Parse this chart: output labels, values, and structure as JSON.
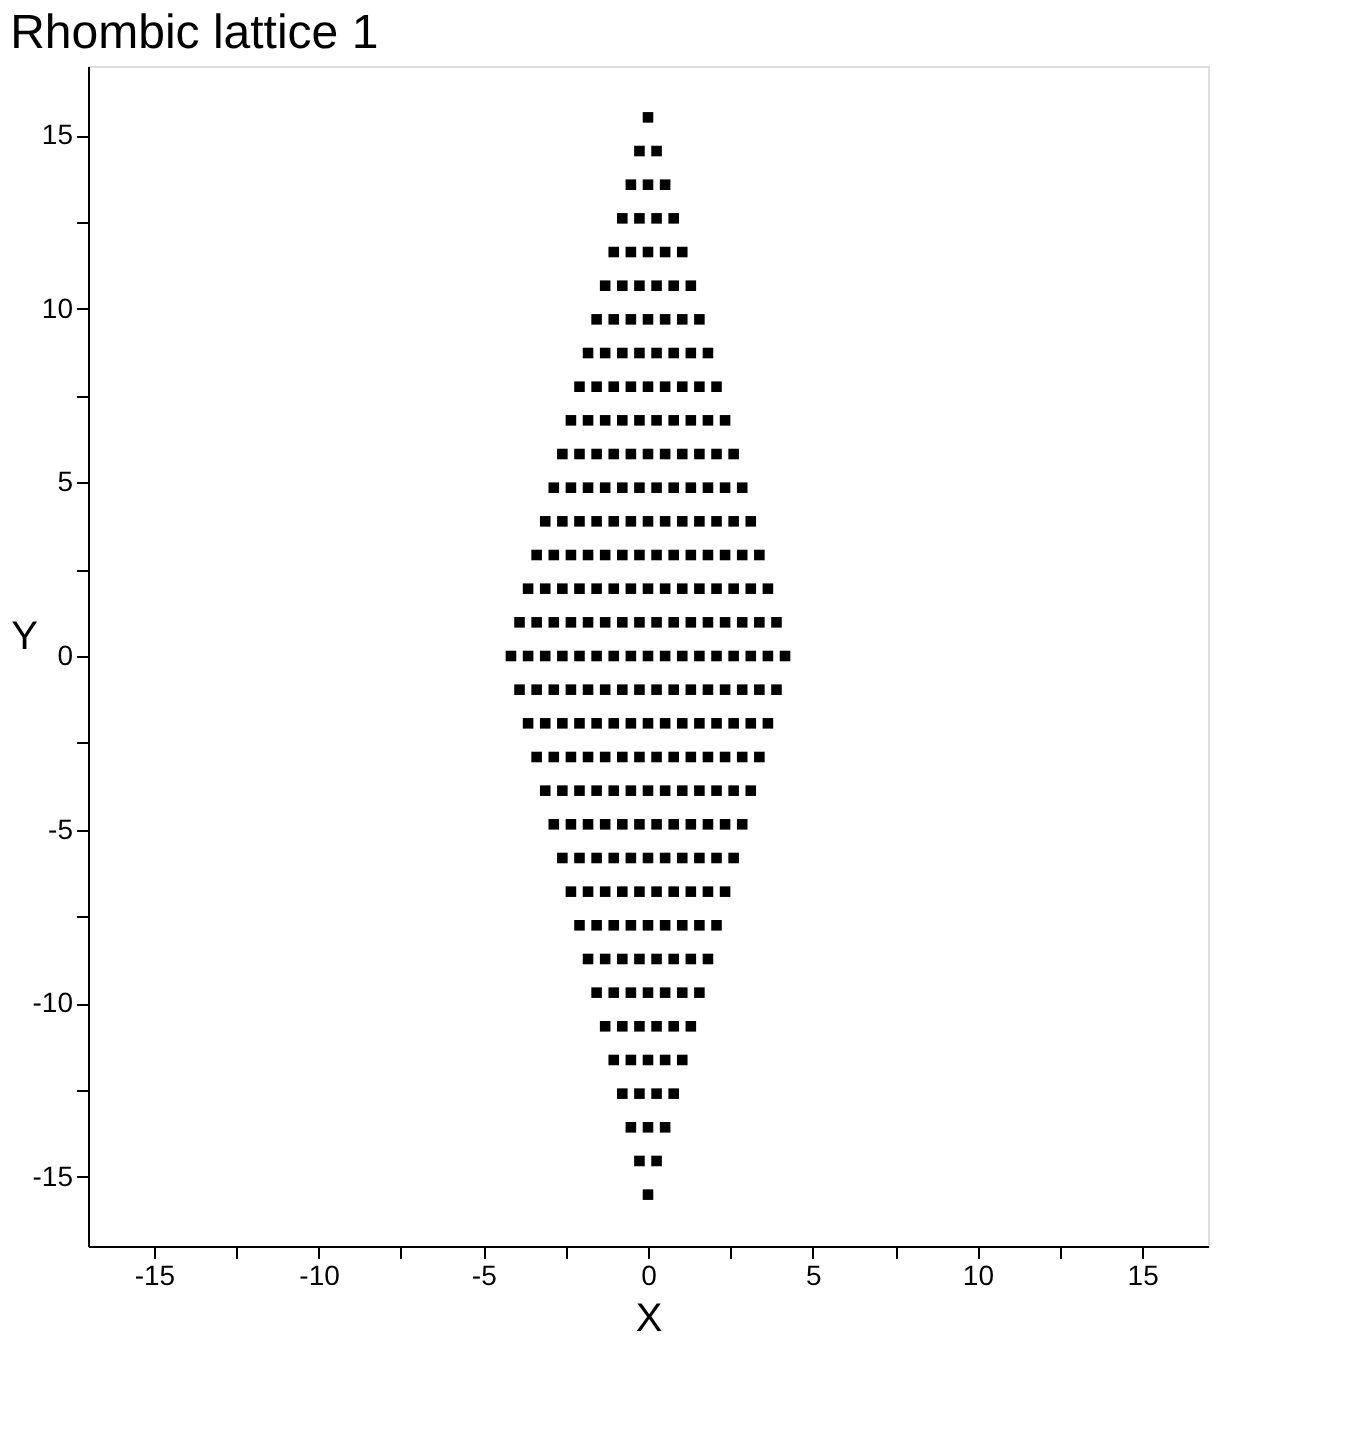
{
  "chart_data": {
    "type": "scatter",
    "title": "Rhombic lattice 1",
    "xlabel": "X",
    "ylabel": "Y",
    "xlim": [
      -17,
      17
    ],
    "ylim": [
      -17,
      17
    ],
    "xticks": [
      -15,
      {
        "value": -12.5,
        "label": null
      },
      -10,
      {
        "value": -7.5,
        "label": null
      },
      -5,
      {
        "value": -2.5,
        "label": null
      },
      0,
      {
        "value": 2.5,
        "label": null
      },
      5,
      {
        "value": 7.5,
        "label": null
      },
      10,
      {
        "value": 12.5,
        "label": null
      },
      15
    ],
    "yticks": [
      -15,
      {
        "value": -12.5,
        "label": null
      },
      -10,
      {
        "value": -7.5,
        "label": null
      },
      -5,
      {
        "value": -2.5,
        "label": null
      },
      0,
      {
        "value": 2.5,
        "label": null
      },
      5,
      {
        "value": 7.5,
        "label": null
      },
      10,
      {
        "value": 12.5,
        "label": null
      },
      15
    ],
    "grid": false,
    "legend": false,
    "marker": "square",
    "series": [
      {
        "color": "#000000",
        "x": [
          0
        ],
        "values": [
          15.52
        ]
      },
      {
        "color": "#000000",
        "x": [
          -0.26,
          0.26
        ],
        "values": [
          14.55,
          14.55
        ]
      },
      {
        "color": "#000000",
        "x": [
          -0.52,
          0,
          0.52
        ],
        "values": [
          13.58,
          13.58,
          13.58
        ]
      },
      {
        "color": "#000000",
        "x": [
          -0.78,
          -0.26,
          0.26,
          0.78
        ],
        "values": [
          12.61,
          12.61,
          12.61,
          12.61
        ]
      },
      {
        "color": "#000000",
        "x": [
          -1.04,
          -0.52,
          0,
          0.52,
          1.04
        ],
        "values": [
          11.64,
          11.64,
          11.64,
          11.64,
          11.64
        ]
      },
      {
        "color": "#000000",
        "x": [
          -1.3,
          -0.78,
          -0.26,
          0.26,
          0.78,
          1.3
        ],
        "values": [
          10.67,
          10.67,
          10.67,
          10.67,
          10.67,
          10.67
        ]
      },
      {
        "color": "#000000",
        "x": [
          -1.56,
          -1.04,
          -0.52,
          0,
          0.52,
          1.04,
          1.56
        ],
        "values": [
          9.7,
          9.7,
          9.7,
          9.7,
          9.7,
          9.7,
          9.7
        ]
      },
      {
        "color": "#000000",
        "x": [
          -1.82,
          -1.3,
          -0.78,
          -0.26,
          0.26,
          0.78,
          1.3,
          1.82
        ],
        "values": [
          8.73,
          8.73,
          8.73,
          8.73,
          8.73,
          8.73,
          8.73,
          8.73
        ]
      },
      {
        "color": "#000000",
        "x": [
          -2.08,
          -1.56,
          -1.04,
          -0.52,
          0,
          0.52,
          1.04,
          1.56,
          2.08
        ],
        "values": [
          7.76,
          7.76,
          7.76,
          7.76,
          7.76,
          7.76,
          7.76,
          7.76,
          7.76
        ]
      },
      {
        "color": "#000000",
        "x": [
          -2.34,
          -1.82,
          -1.3,
          -0.78,
          -0.26,
          0.26,
          0.78,
          1.3,
          1.82,
          2.34
        ],
        "values": [
          6.79,
          6.79,
          6.79,
          6.79,
          6.79,
          6.79,
          6.79,
          6.79,
          6.79,
          6.79
        ]
      },
      {
        "color": "#000000",
        "x": [
          -2.6,
          -2.08,
          -1.56,
          -1.04,
          -0.52,
          0,
          0.52,
          1.04,
          1.56,
          2.08,
          2.6
        ],
        "values": [
          5.82,
          5.82,
          5.82,
          5.82,
          5.82,
          5.82,
          5.82,
          5.82,
          5.82,
          5.82,
          5.82
        ]
      },
      {
        "color": "#000000",
        "x": [
          -2.86,
          -2.34,
          -1.82,
          -1.3,
          -0.78,
          -0.26,
          0.26,
          0.78,
          1.3,
          1.82,
          2.34,
          2.86
        ],
        "values": [
          4.85,
          4.85,
          4.85,
          4.85,
          4.85,
          4.85,
          4.85,
          4.85,
          4.85,
          4.85,
          4.85,
          4.85
        ]
      },
      {
        "color": "#000000",
        "x": [
          -3.12,
          -2.6,
          -2.08,
          -1.56,
          -1.04,
          -0.52,
          0,
          0.52,
          1.04,
          1.56,
          2.08,
          2.6,
          3.12
        ],
        "values": [
          3.88,
          3.88,
          3.88,
          3.88,
          3.88,
          3.88,
          3.88,
          3.88,
          3.88,
          3.88,
          3.88,
          3.88,
          3.88
        ]
      },
      {
        "color": "#000000",
        "x": [
          -3.38,
          -2.86,
          -2.34,
          -1.82,
          -1.3,
          -0.78,
          -0.26,
          0.26,
          0.78,
          1.3,
          1.82,
          2.34,
          2.86,
          3.38
        ],
        "values": [
          2.91,
          2.91,
          2.91,
          2.91,
          2.91,
          2.91,
          2.91,
          2.91,
          2.91,
          2.91,
          2.91,
          2.91,
          2.91,
          2.91
        ]
      },
      {
        "color": "#000000",
        "x": [
          -3.64,
          -3.12,
          -2.6,
          -2.08,
          -1.56,
          -1.04,
          -0.52,
          0,
          0.52,
          1.04,
          1.56,
          2.08,
          2.6,
          3.12,
          3.64
        ],
        "values": [
          1.94,
          1.94,
          1.94,
          1.94,
          1.94,
          1.94,
          1.94,
          1.94,
          1.94,
          1.94,
          1.94,
          1.94,
          1.94,
          1.94,
          1.94
        ]
      },
      {
        "color": "#000000",
        "x": [
          -3.9,
          -3.38,
          -2.86,
          -2.34,
          -1.82,
          -1.3,
          -0.78,
          -0.26,
          0.26,
          0.78,
          1.3,
          1.82,
          2.34,
          2.86,
          3.38,
          3.9
        ],
        "values": [
          0.97,
          0.97,
          0.97,
          0.97,
          0.97,
          0.97,
          0.97,
          0.97,
          0.97,
          0.97,
          0.97,
          0.97,
          0.97,
          0.97,
          0.97,
          0.97
        ]
      },
      {
        "color": "#000000",
        "x": [
          -4.16,
          -3.64,
          -3.12,
          -2.6,
          -2.08,
          -1.56,
          -1.04,
          -0.52,
          0,
          0.52,
          1.04,
          1.56,
          2.08,
          2.6,
          3.12,
          3.64,
          4.16
        ],
        "values": [
          0,
          0,
          0,
          0,
          0,
          0,
          0,
          0,
          0,
          0,
          0,
          0,
          0,
          0,
          0,
          0,
          0
        ]
      },
      {
        "color": "#000000",
        "x": [
          -3.9,
          -3.38,
          -2.86,
          -2.34,
          -1.82,
          -1.3,
          -0.78,
          -0.26,
          0.26,
          0.78,
          1.3,
          1.82,
          2.34,
          2.86,
          3.38,
          3.9
        ],
        "values": [
          -0.97,
          -0.97,
          -0.97,
          -0.97,
          -0.97,
          -0.97,
          -0.97,
          -0.97,
          -0.97,
          -0.97,
          -0.97,
          -0.97,
          -0.97,
          -0.97,
          -0.97,
          -0.97
        ]
      },
      {
        "color": "#000000",
        "x": [
          -3.64,
          -3.12,
          -2.6,
          -2.08,
          -1.56,
          -1.04,
          -0.52,
          0,
          0.52,
          1.04,
          1.56,
          2.08,
          2.6,
          3.12,
          3.64
        ],
        "values": [
          -1.94,
          -1.94,
          -1.94,
          -1.94,
          -1.94,
          -1.94,
          -1.94,
          -1.94,
          -1.94,
          -1.94,
          -1.94,
          -1.94,
          -1.94,
          -1.94,
          -1.94
        ]
      },
      {
        "color": "#000000",
        "x": [
          -3.38,
          -2.86,
          -2.34,
          -1.82,
          -1.3,
          -0.78,
          -0.26,
          0.26,
          0.78,
          1.3,
          1.82,
          2.34,
          2.86,
          3.38
        ],
        "values": [
          -2.91,
          -2.91,
          -2.91,
          -2.91,
          -2.91,
          -2.91,
          -2.91,
          -2.91,
          -2.91,
          -2.91,
          -2.91,
          -2.91,
          -2.91,
          -2.91
        ]
      },
      {
        "color": "#000000",
        "x": [
          -3.12,
          -2.6,
          -2.08,
          -1.56,
          -1.04,
          -0.52,
          0,
          0.52,
          1.04,
          1.56,
          2.08,
          2.6,
          3.12
        ],
        "values": [
          -3.88,
          -3.88,
          -3.88,
          -3.88,
          -3.88,
          -3.88,
          -3.88,
          -3.88,
          -3.88,
          -3.88,
          -3.88,
          -3.88,
          -3.88
        ]
      },
      {
        "color": "#000000",
        "x": [
          -2.86,
          -2.34,
          -1.82,
          -1.3,
          -0.78,
          -0.26,
          0.26,
          0.78,
          1.3,
          1.82,
          2.34,
          2.86
        ],
        "values": [
          -4.85,
          -4.85,
          -4.85,
          -4.85,
          -4.85,
          -4.85,
          -4.85,
          -4.85,
          -4.85,
          -4.85,
          -4.85,
          -4.85
        ]
      },
      {
        "color": "#000000",
        "x": [
          -2.6,
          -2.08,
          -1.56,
          -1.04,
          -0.52,
          0,
          0.52,
          1.04,
          1.56,
          2.08,
          2.6
        ],
        "values": [
          -5.82,
          -5.82,
          -5.82,
          -5.82,
          -5.82,
          -5.82,
          -5.82,
          -5.82,
          -5.82,
          -5.82,
          -5.82
        ]
      },
      {
        "color": "#000000",
        "x": [
          -2.34,
          -1.82,
          -1.3,
          -0.78,
          -0.26,
          0.26,
          0.78,
          1.3,
          1.82,
          2.34
        ],
        "values": [
          -6.79,
          -6.79,
          -6.79,
          -6.79,
          -6.79,
          -6.79,
          -6.79,
          -6.79,
          -6.79,
          -6.79
        ]
      },
      {
        "color": "#000000",
        "x": [
          -2.08,
          -1.56,
          -1.04,
          -0.52,
          0,
          0.52,
          1.04,
          1.56,
          2.08
        ],
        "values": [
          -7.76,
          -7.76,
          -7.76,
          -7.76,
          -7.76,
          -7.76,
          -7.76,
          -7.76,
          -7.76
        ]
      },
      {
        "color": "#000000",
        "x": [
          -1.82,
          -1.3,
          -0.78,
          -0.26,
          0.26,
          0.78,
          1.3,
          1.82
        ],
        "values": [
          -8.73,
          -8.73,
          -8.73,
          -8.73,
          -8.73,
          -8.73,
          -8.73,
          -8.73
        ]
      },
      {
        "color": "#000000",
        "x": [
          -1.56,
          -1.04,
          -0.52,
          0,
          0.52,
          1.04,
          1.56
        ],
        "values": [
          -9.7,
          -9.7,
          -9.7,
          -9.7,
          -9.7,
          -9.7,
          -9.7
        ]
      },
      {
        "color": "#000000",
        "x": [
          -1.3,
          -0.78,
          -0.26,
          0.26,
          0.78,
          1.3
        ],
        "values": [
          -10.67,
          -10.67,
          -10.67,
          -10.67,
          -10.67,
          -10.67
        ]
      },
      {
        "color": "#000000",
        "x": [
          -1.04,
          -0.52,
          0,
          0.52,
          1.04
        ],
        "values": [
          -11.64,
          -11.64,
          -11.64,
          -11.64,
          -11.64
        ]
      },
      {
        "color": "#000000",
        "x": [
          -0.78,
          -0.26,
          0.26,
          0.78
        ],
        "values": [
          -12.61,
          -12.61,
          -12.61,
          -12.61
        ]
      },
      {
        "color": "#000000",
        "x": [
          -0.52,
          0,
          0.52
        ],
        "values": [
          -13.58,
          -13.58,
          -13.58
        ]
      },
      {
        "color": "#000000",
        "x": [
          -0.26,
          0.26
        ],
        "values": [
          -14.55,
          -14.55
        ]
      },
      {
        "color": "#000000",
        "x": [
          0
        ],
        "values": [
          -15.52
        ]
      }
    ]
  }
}
